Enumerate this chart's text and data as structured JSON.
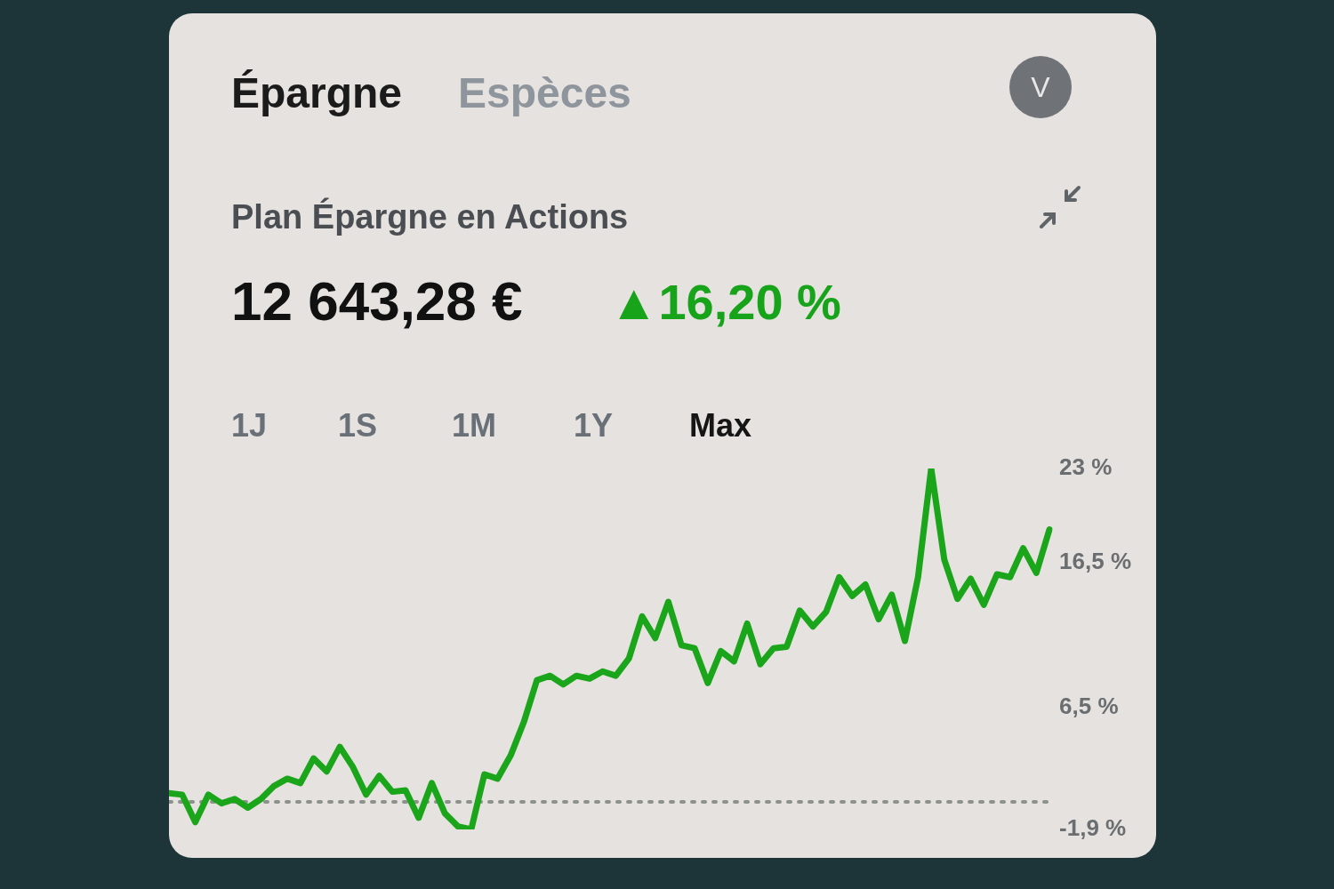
{
  "chart_data": {
    "type": "line",
    "title": "Plan Épargne en Actions",
    "subtitle": "12 643,28 €",
    "annotations": [
      "Épargne",
      "Espèces",
      "V",
      "▲16,20 %",
      "1J",
      "1S",
      "1M",
      "1Y",
      "Max"
    ],
    "categories": [
      null,
      null,
      null,
      null,
      null,
      null,
      null,
      null,
      null,
      null,
      null,
      null,
      null,
      null,
      null,
      null,
      null,
      null,
      null,
      null,
      null,
      null,
      null,
      null,
      null,
      null,
      null,
      null,
      null,
      null,
      null,
      null,
      null,
      null,
      null,
      null,
      null,
      null,
      null,
      null,
      null,
      null,
      null,
      null,
      null,
      null,
      null,
      null,
      null,
      null,
      null,
      null,
      null,
      null,
      null,
      null,
      null,
      null,
      null,
      null,
      null,
      null,
      null,
      null,
      null,
      null,
      null,
      null
    ],
    "series": [
      {
        "color": "#1aa51a",
        "values": [
          0.6,
          0.5,
          -1.4,
          0.5,
          -0.1,
          0.2,
          -0.4,
          0.2,
          1.1,
          1.6,
          1.3,
          3.0,
          2.1,
          3.8,
          2.4,
          0.5,
          1.8,
          0.7,
          0.8,
          -1.1,
          1.3,
          -0.8,
          -1.7,
          -1.9,
          1.9,
          1.6,
          3.2,
          5.5,
          8.4,
          8.7,
          8.1,
          8.7,
          8.5,
          9.0,
          8.7,
          9.9,
          12.8,
          11.3,
          13.8,
          10.8,
          10.6,
          8.2,
          10.4,
          9.7,
          12.3,
          9.5,
          10.6,
          10.7,
          13.2,
          12.1,
          13.1,
          15.5,
          14.2,
          15.0,
          12.6,
          14.3,
          11.1,
          15.5,
          23,
          16.7,
          14.0,
          15.4,
          13.6,
          15.7,
          15.5,
          17.5,
          15.8,
          18.8
        ]
      }
    ],
    "ylim": [
      -1.9,
      23
    ],
    "yticks": [
      {
        "value": -1.9,
        "label": "-1,9 %"
      },
      {
        "value": 6.5,
        "label": "6,5 %"
      },
      {
        "value": 16.5,
        "label": "16,5 %"
      },
      {
        "value": 23,
        "label": "23 %"
      }
    ],
    "tick_labels": "y",
    "grid": false,
    "legend": false,
    "marker": "none",
    "line_style": "solid",
    "ref_lines": [
      {
        "axis": "y",
        "value": 0,
        "color": "#8d918b",
        "line_style": "dotted"
      }
    ]
  }
}
